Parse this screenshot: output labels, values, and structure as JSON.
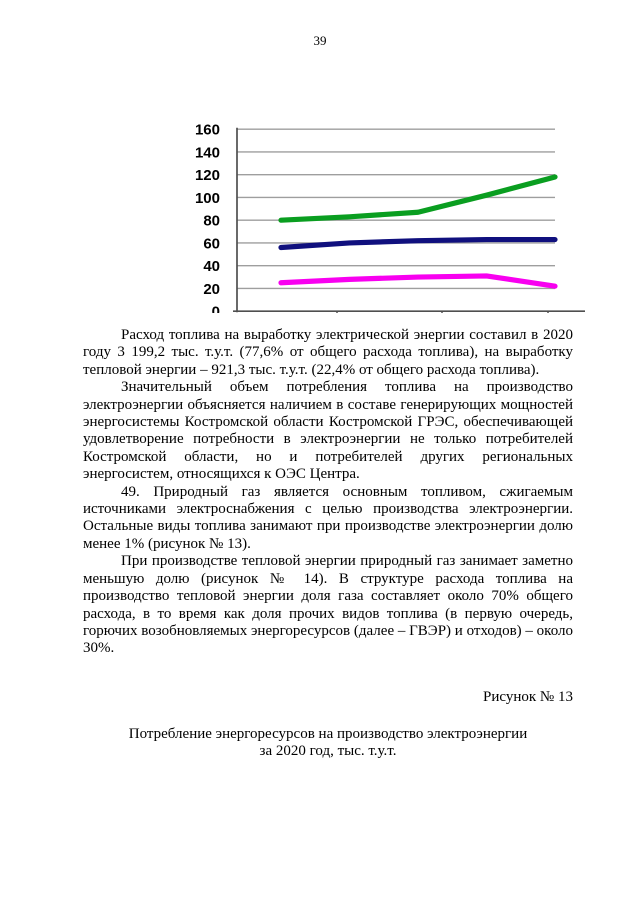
{
  "page": {
    "number": "39"
  },
  "chart_data": {
    "type": "line",
    "ylim": [
      0,
      160
    ],
    "ytick_step": 20,
    "ytick_labels": [
      "160",
      "140",
      "120",
      "100",
      "80",
      "60",
      "40",
      "20",
      "0"
    ],
    "grid": true,
    "note": "x-axis category labels and legend are cropped out of the visible area; chart is cut at the 0 axis line",
    "series": [
      {
        "name": "green-line",
        "color": "#0a9e20",
        "values": [
          80,
          83,
          87,
          102,
          118
        ]
      },
      {
        "name": "navy-line",
        "color": "#10107e",
        "values": [
          56,
          60,
          62,
          63,
          63
        ]
      },
      {
        "name": "magenta-line",
        "color": "#f800f0",
        "values": [
          25,
          28,
          30,
          31,
          22
        ]
      }
    ]
  },
  "colors": {
    "grid": "#9e9e9e",
    "axis": "#4f4f4f",
    "text": "#000000"
  },
  "paragraphs": [
    "Расход топлива на выработку электрической энергии составил в 2020 году 3 199,2 тыс. т.у.т. (77,6% от общего расхода топлива), на выработку тепловой энергии – 921,3 тыс. т.у.т. (22,4% от общего расхода топлива).",
    "Значительный объем потребления топлива на производство электроэнергии объясняется наличием в составе генерирующих мощностей энергосистемы Костромской области Костромской ГРЭС, обеспечивающей удовлетворение потребности в электроэнергии не только потребителей Костромской области, но и потребителей других региональных энергосистем, относящихся к ОЭС Центра.",
    "49. Природный газ является основным топливом, сжигаемым источниками электроснабжения с целью производства электроэнергии. Остальные виды топлива занимают при производстве электроэнергии долю менее 1% (рисунок № 13).",
    "При производстве тепловой энергии природный газ занимает заметно меньшую долю (рисунок № 14). В структуре расхода топлива на производство тепловой энергии доля газа составляет около 70% общего расхода, в то время как доля прочих видов топлива (в первую очередь, горючих возобновляемых энергоресурсов (далее – ГВЭР) и отходов) – около 30%."
  ],
  "figure": {
    "caption": "Рисунок № 13",
    "title_line1": "Потребление энергоресурсов на производство электроэнергии",
    "title_line2": "за 2020 год, тыс. т.у.т."
  }
}
